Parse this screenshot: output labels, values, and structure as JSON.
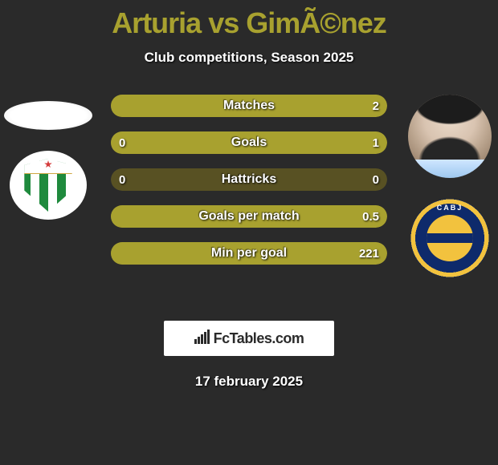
{
  "colors": {
    "background": "#2a2a2a",
    "title": "#a8a12f",
    "text": "#ffffff",
    "bar_fill": "#a8a12f",
    "bar_track": "#585123",
    "brand_bg": "#ffffff",
    "brand_text": "#2a2a2a"
  },
  "header": {
    "title": "Arturia vs GimÃ©nez",
    "title_fontsize": 36,
    "subtitle": "Club competitions, Season 2025",
    "subtitle_fontsize": 17
  },
  "stats": {
    "label_fontsize": 16,
    "value_fontsize": 15,
    "rows": [
      {
        "label": "Matches",
        "left": "",
        "right": "2",
        "left_pct": 0,
        "right_pct": 100
      },
      {
        "label": "Goals",
        "left": "0",
        "right": "1",
        "left_pct": 0,
        "right_pct": 100
      },
      {
        "label": "Hattricks",
        "left": "0",
        "right": "0",
        "left_pct": 0,
        "right_pct": 0
      },
      {
        "label": "Goals per match",
        "left": "",
        "right": "0.5",
        "left_pct": 0,
        "right_pct": 100
      },
      {
        "label": "Min per goal",
        "left": "",
        "right": "221",
        "left_pct": 0,
        "right_pct": 100
      }
    ]
  },
  "brand": {
    "text": "FcTables.com",
    "fontsize": 18
  },
  "footer": {
    "date": "17 february 2025",
    "fontsize": 17
  }
}
